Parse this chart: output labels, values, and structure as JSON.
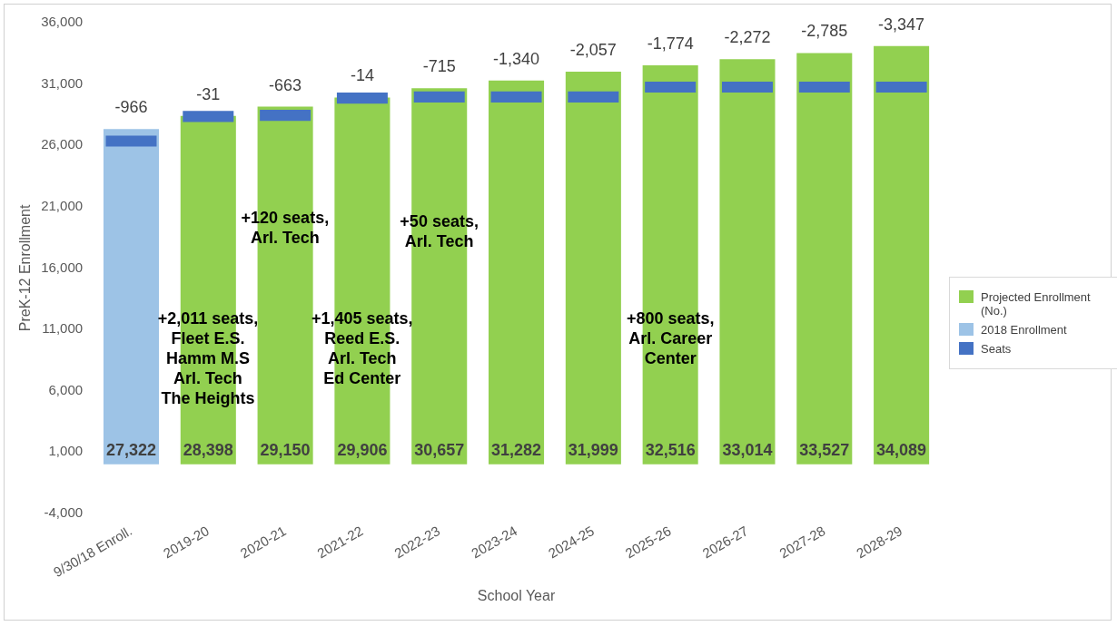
{
  "chart_data": {
    "type": "bar",
    "xlabel": "School Year",
    "ylabel": "PreK-12 Enrollment",
    "categories": [
      "9/30/18 Enroll.",
      "2019-20",
      "2020-21",
      "2021-22",
      "2022-23",
      "2023-24",
      "2024-25",
      "2025-26",
      "2026-27",
      "2027-28",
      "2028-29"
    ],
    "series": [
      {
        "name": "Projected Enrollment (No.)",
        "color": "#92d050",
        "values": [
          null,
          28398,
          29150,
          29906,
          30657,
          31282,
          31999,
          32516,
          33014,
          33527,
          34089
        ],
        "value_labels": [
          null,
          "28,398",
          "29,150",
          "29,906",
          "30,657",
          "31,282",
          "31,999",
          "32,516",
          "33,014",
          "33,527",
          "34,089"
        ]
      },
      {
        "name": "2018 Enrollment",
        "color": "#9dc3e6",
        "values": [
          27322,
          null,
          null,
          null,
          null,
          null,
          null,
          null,
          null,
          null,
          null
        ],
        "value_labels": [
          "27,322",
          null,
          null,
          null,
          null,
          null,
          null,
          null,
          null,
          null,
          null
        ]
      },
      {
        "name": "Seats",
        "color": "#4472c4",
        "base": [
          25900,
          27900,
          28000,
          29400,
          29500,
          29500,
          29500,
          30300,
          30300,
          30300,
          30300
        ],
        "values": [
          900,
          900,
          900,
          900,
          900,
          900,
          900,
          900,
          900,
          900,
          900
        ]
      }
    ],
    "ylim": [
      -4000,
      36000
    ],
    "yticks": [
      {
        "value": -4000,
        "label": "-4,000"
      },
      {
        "value": 1000,
        "label": "1,000"
      },
      {
        "value": 6000,
        "label": "6,000"
      },
      {
        "value": 11000,
        "label": "11,000"
      },
      {
        "value": 16000,
        "label": "16,000"
      },
      {
        "value": 21000,
        "label": "21,000"
      },
      {
        "value": 26000,
        "label": "26,000"
      },
      {
        "value": 31000,
        "label": "31,000"
      },
      {
        "value": 36000,
        "label": "36,000"
      }
    ],
    "grid": false,
    "legend": "right",
    "annotations": [
      {
        "text": "-966",
        "x": "9/30/18 Enroll.",
        "y": 27322
      },
      {
        "text": "-31",
        "x": "2019-20",
        "y": 28398
      },
      {
        "text": "-663",
        "x": "2020-21",
        "y": 29150
      },
      {
        "text": "-14",
        "x": "2021-22",
        "y": 29906
      },
      {
        "text": "-715",
        "x": "2022-23",
        "y": 30657
      },
      {
        "text": "-1,340",
        "x": "2023-24",
        "y": 31282
      },
      {
        "text": "-2,057",
        "x": "2024-25",
        "y": 31999
      },
      {
        "text": "-1,774",
        "x": "2025-26",
        "y": 32516
      },
      {
        "text": "-2,272",
        "x": "2026-27",
        "y": 33014
      },
      {
        "text": "-2,785",
        "x": "2027-28",
        "y": 33527
      },
      {
        "text": "-3,347",
        "x": "2028-29",
        "y": 34089
      },
      "+2,011 seats,\nFleet E.S.\nHamm M.S\nArl. Tech\nThe Heights",
      "+120 seats,\nArl. Tech",
      "+1,405 seats,\nReed E.S.\nArl. Tech\nEd Center",
      "+50 seats,\nArl. Tech",
      "+800 seats,\nArl. Career\nCenter"
    ]
  }
}
